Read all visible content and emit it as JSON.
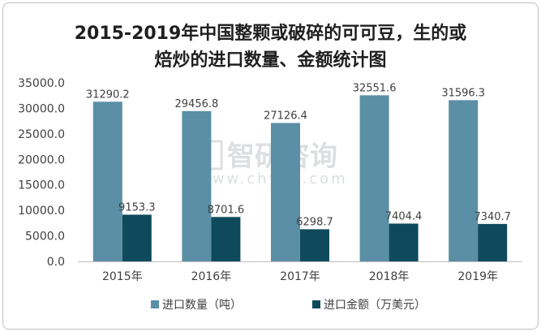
{
  "chart_data": {
    "type": "bar",
    "title": "2015-2019年中国整颗或破碎的可可豆，生的或焙炒的进口数量、金额统计图",
    "title_lines": [
      "2015-2019年中国整颗或破碎的可可豆，生的或",
      "焙炒的进口数量、金额统计图"
    ],
    "categories": [
      "2015年",
      "2016年",
      "2017年",
      "2018年",
      "2019年"
    ],
    "series": [
      {
        "name": "进口数量（吨）",
        "color": "#5b8fa6",
        "values": [
          31290.2,
          29456.8,
          27126.4,
          32551.6,
          31596.3
        ],
        "labels": [
          "31290.2",
          "29456.8",
          "27126.4",
          "32551.6",
          "31596.3"
        ]
      },
      {
        "name": "进口金额（万美元）",
        "color": "#0f4a5c",
        "values": [
          9153.3,
          8701.6,
          6298.7,
          7404.4,
          7340.7
        ],
        "labels": [
          "9153.3",
          "8701.6",
          "6298.7",
          "7404.4",
          "7340.7"
        ]
      }
    ],
    "ylim": [
      0,
      35000
    ],
    "yticks": [
      "0.0",
      "5000.0",
      "10000.0",
      "15000.0",
      "20000.0",
      "25000.0",
      "30000.0",
      "35000.0"
    ],
    "grid": false,
    "legend_position": "bottom"
  },
  "watermark": {
    "text": "智研咨询",
    "url": "www.chyxx.com"
  }
}
